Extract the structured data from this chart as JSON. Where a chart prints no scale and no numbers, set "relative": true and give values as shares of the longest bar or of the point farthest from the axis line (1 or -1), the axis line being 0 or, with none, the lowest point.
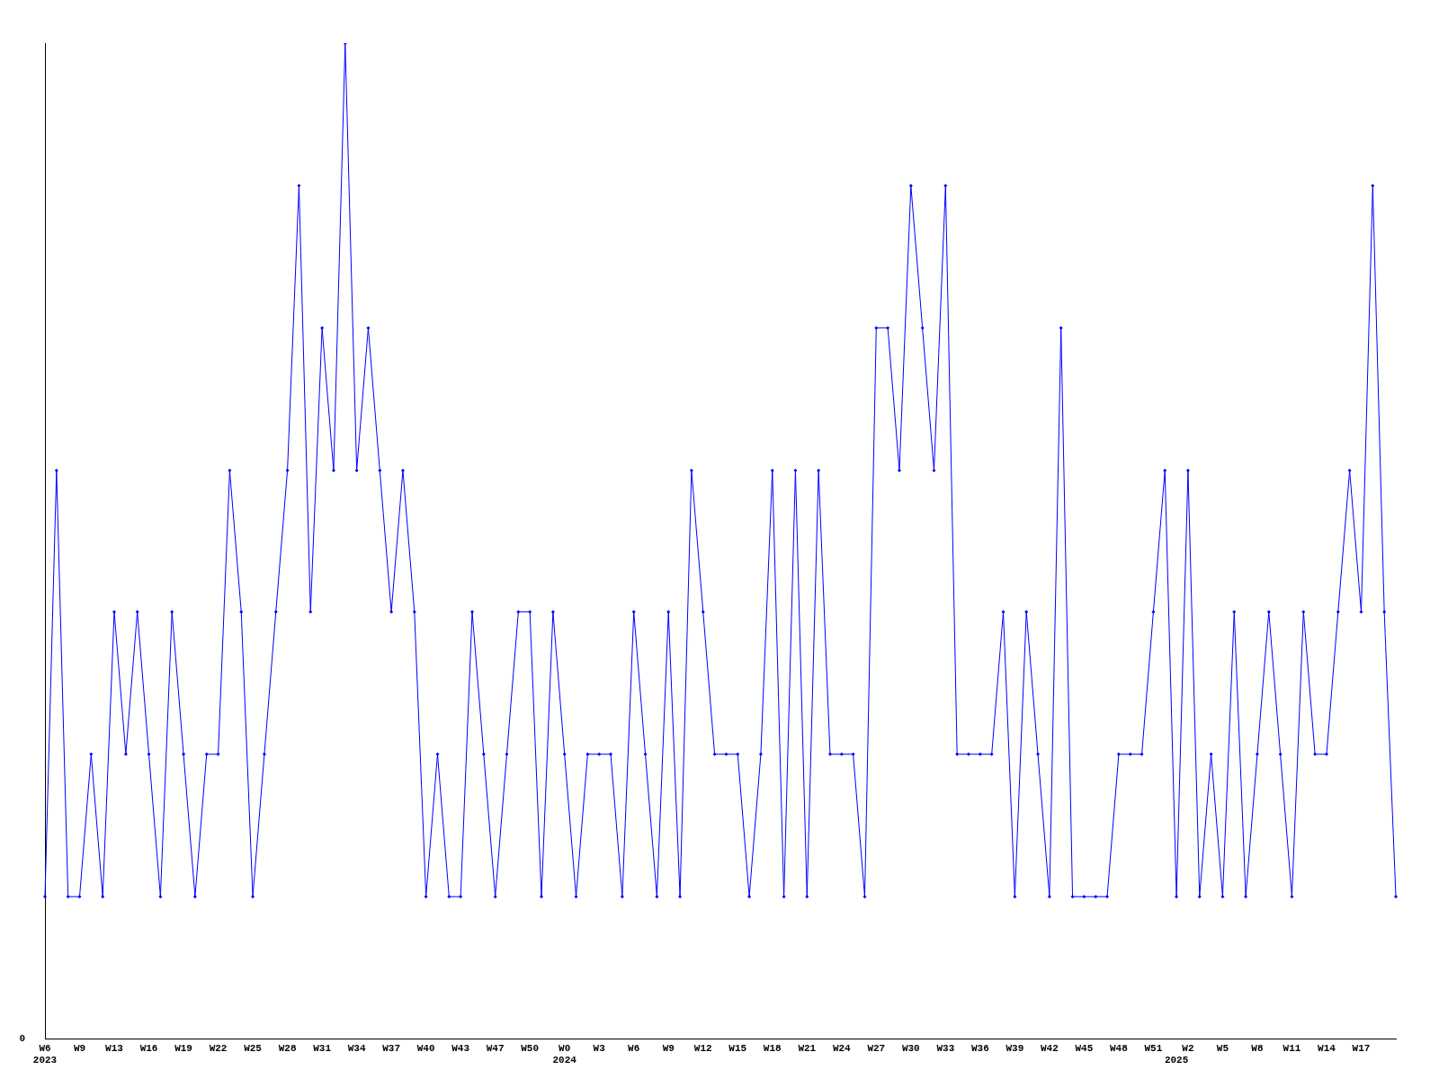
{
  "chart_data": {
    "type": "line",
    "relative": true,
    "color": "#0000ff",
    "marker": "diamond",
    "grid": false,
    "legend": false,
    "annotations": [
      "0"
    ],
    "categories": [
      "W6\n2023",
      null,
      null,
      "W9",
      null,
      null,
      "W13",
      null,
      null,
      "W16",
      null,
      null,
      "W19",
      null,
      null,
      "W22",
      null,
      null,
      "W25",
      null,
      null,
      "W28",
      null,
      null,
      "W31",
      null,
      null,
      "W34",
      null,
      null,
      "W37",
      null,
      null,
      "W40",
      null,
      null,
      "W43",
      null,
      null,
      "W47",
      null,
      null,
      "W50",
      null,
      null,
      "W0\n2024",
      null,
      null,
      "W3",
      null,
      null,
      "W6",
      null,
      null,
      "W9",
      null,
      null,
      "W12",
      null,
      null,
      "W15",
      null,
      null,
      "W18",
      null,
      null,
      "W21",
      null,
      null,
      "W24",
      null,
      null,
      "W27",
      null,
      null,
      "W30",
      null,
      null,
      "W33",
      null,
      null,
      "W36",
      null,
      null,
      "W39",
      null,
      null,
      "W42",
      null,
      null,
      "W45",
      null,
      null,
      "W48",
      null,
      null,
      "W51",
      null,
      "\n2025",
      "W2",
      null,
      null,
      "W5",
      null,
      null,
      "W8",
      null,
      null,
      "W11",
      null,
      null,
      "W14",
      null,
      null,
      "W17",
      null,
      null,
      null
    ],
    "values": [
      0.143,
      0.571,
      0.143,
      0.143,
      0.286,
      0.143,
      0.429,
      0.286,
      0.429,
      0.286,
      0.143,
      0.429,
      0.286,
      0.143,
      0.286,
      0.286,
      0.571,
      0.429,
      0.143,
      0.286,
      0.429,
      0.571,
      0.857,
      0.429,
      0.714,
      0.571,
      1,
      0.571,
      0.714,
      0.571,
      0.429,
      0.571,
      0.429,
      0.143,
      0.286,
      0.143,
      0.143,
      0.429,
      0.286,
      0.143,
      0.286,
      0.429,
      0.429,
      0.143,
      0.429,
      0.286,
      0.143,
      0.286,
      0.286,
      0.286,
      0.143,
      0.429,
      0.286,
      0.143,
      0.429,
      0.143,
      0.571,
      0.429,
      0.286,
      0.286,
      0.286,
      0.143,
      0.286,
      0.571,
      0.143,
      0.571,
      0.143,
      0.571,
      0.286,
      0.286,
      0.286,
      0.143,
      0.714,
      0.714,
      0.571,
      0.857,
      0.714,
      0.571,
      0.857,
      0.286,
      0.286,
      0.286,
      0.286,
      0.429,
      0.143,
      0.429,
      0.286,
      0.143,
      0.714,
      0.143,
      0.143,
      0.143,
      0.143,
      0.286,
      0.286,
      0.286,
      0.429,
      0.571,
      0.143,
      0.571,
      0.143,
      0.286,
      0.143,
      0.429,
      0.143,
      0.286,
      0.429,
      0.286,
      0.143,
      0.429,
      0.286,
      0.286,
      0.429,
      0.571,
      0.429,
      0.857,
      0.429,
      0.143
    ]
  }
}
